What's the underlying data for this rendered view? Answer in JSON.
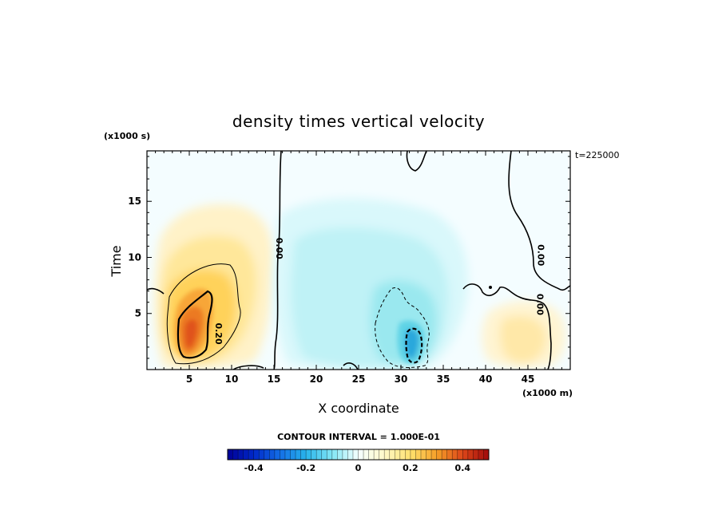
{
  "chart_data": {
    "type": "heatmap",
    "title": "density times vertical velocity",
    "xlabel": "X coordinate",
    "ylabel": "Time",
    "x_unit": "(x1000 m)",
    "y_unit": "(x1000 s)",
    "time_stamp": "t=225000",
    "xlim": [
      0,
      50
    ],
    "ylim": [
      0,
      19.5
    ],
    "x_ticks": [
      5,
      10,
      15,
      20,
      25,
      30,
      35,
      40,
      45
    ],
    "y_ticks": [
      5,
      10,
      15
    ],
    "x_tick_labels": [
      "5",
      "10",
      "15",
      "20",
      "25",
      "30",
      "35",
      "40",
      "45"
    ],
    "y_tick_labels": [
      "5",
      "10",
      "15"
    ],
    "contour_interval_text": "CONTOUR INTERVAL = 1.000E-01",
    "contour_labels": [
      {
        "text": "0.00",
        "x": 15.3,
        "y": 10.8
      },
      {
        "text": "0.20",
        "x": 8.1,
        "y": 3.2
      },
      {
        "text": "0.00",
        "x": 46.2,
        "y": 10.2
      },
      {
        "text": "0.00",
        "x": 46.1,
        "y": 5.8
      }
    ],
    "colorbar": {
      "min": -0.5,
      "max": 0.5,
      "ticks": [
        -0.4,
        -0.2,
        0,
        0.2,
        0.4
      ],
      "tick_labels": [
        "-0.4",
        "-0.2",
        "0",
        "0.2",
        "0.4"
      ]
    },
    "features": [
      {
        "sign": "positive",
        "x": 5.5,
        "y": 3.0,
        "peak": 0.42,
        "note": "maximum near x=5-6, t=2-4"
      },
      {
        "sign": "negative",
        "x": 31.7,
        "y": 2.3,
        "peak": -0.28,
        "note": "minimum near x=31-32, t=1-3"
      },
      {
        "sign": "positive",
        "x": 45.0,
        "y": 3.0,
        "peak": 0.08
      }
    ]
  }
}
